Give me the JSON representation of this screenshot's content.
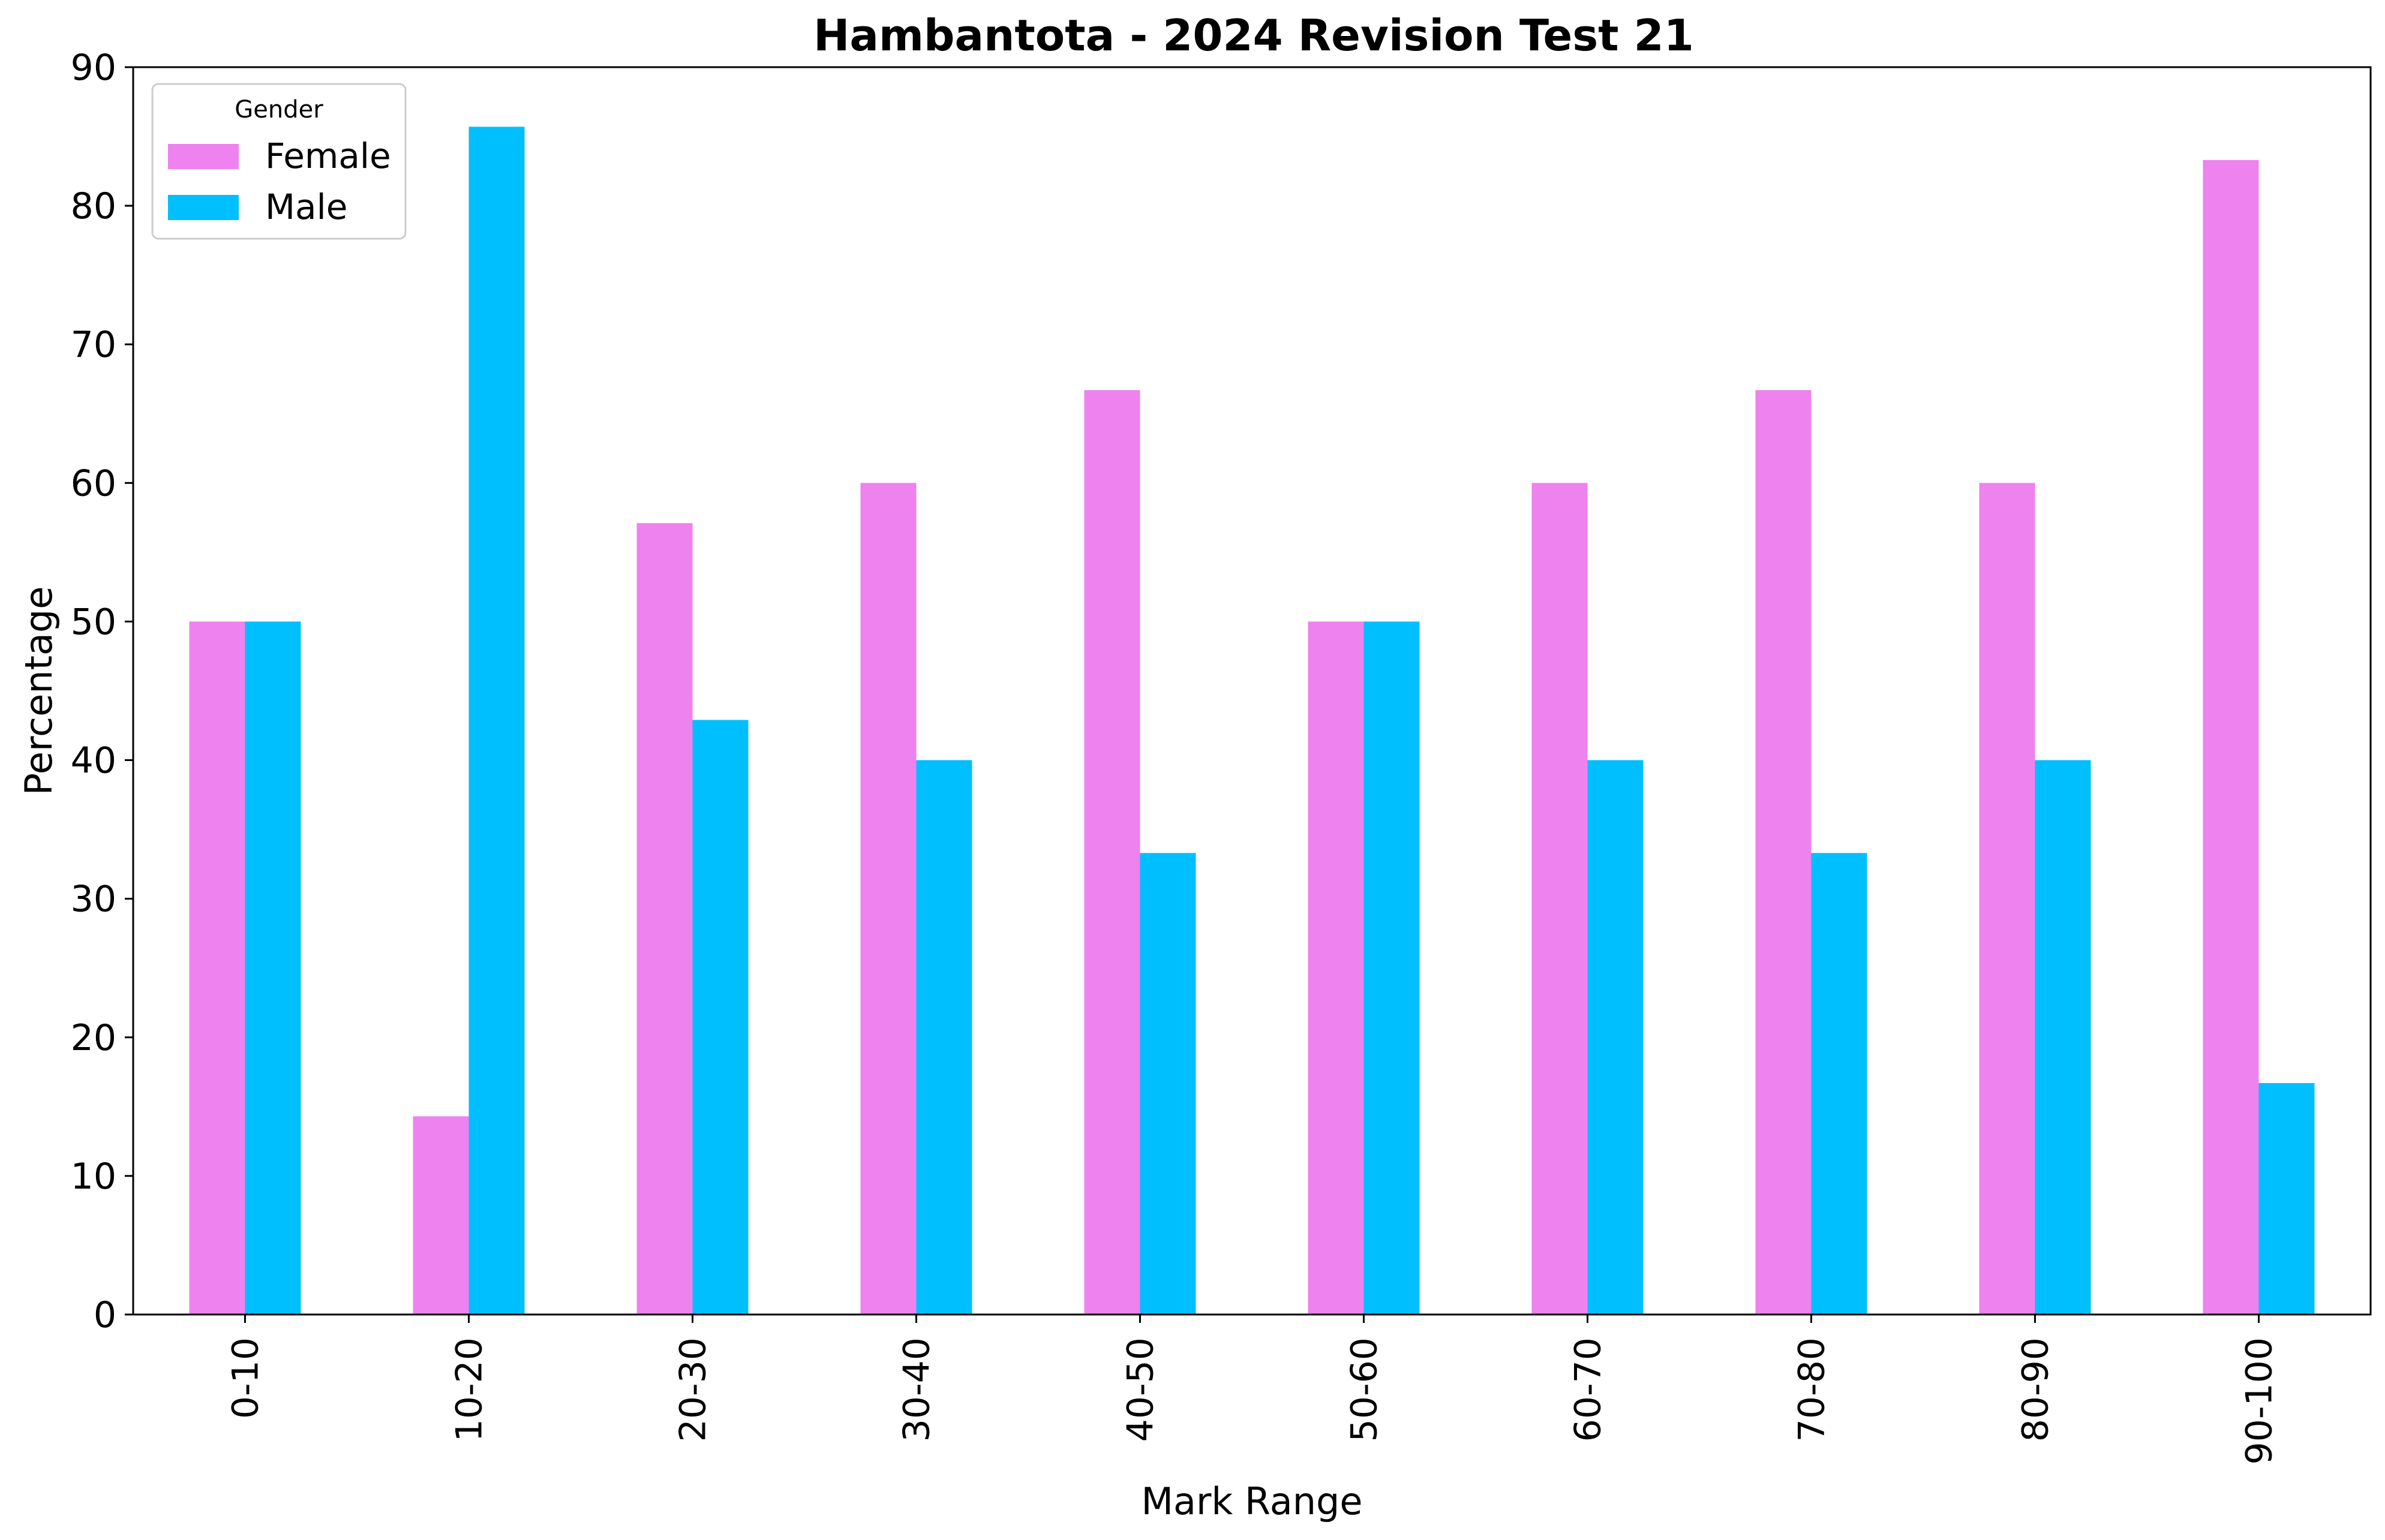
{
  "chart_data": {
    "type": "bar",
    "title": "Hambantota - 2024 Revision Test 21",
    "xlabel": "Mark Range",
    "ylabel": "Percentage",
    "categories": [
      "0-10",
      "10-20",
      "20-30",
      "30-40",
      "40-50",
      "50-60",
      "60-70",
      "70-80",
      "80-90",
      "90-100"
    ],
    "series": [
      {
        "name": "Female",
        "color": "#ee82ee",
        "values": [
          50.0,
          14.3,
          57.1,
          60.0,
          66.7,
          50.0,
          60.0,
          66.7,
          60.0,
          83.3
        ]
      },
      {
        "name": "Male",
        "color": "#00bfff",
        "values": [
          50.0,
          85.7,
          42.9,
          40.0,
          33.3,
          50.0,
          40.0,
          33.3,
          40.0,
          16.7
        ]
      }
    ],
    "ylim": [
      0,
      90
    ],
    "yticks": [
      "0",
      "10",
      "20",
      "30",
      "40",
      "50",
      "60",
      "70",
      "80",
      "90"
    ],
    "legend": {
      "title": "Gender",
      "placement": "top-left"
    },
    "grid": false
  }
}
